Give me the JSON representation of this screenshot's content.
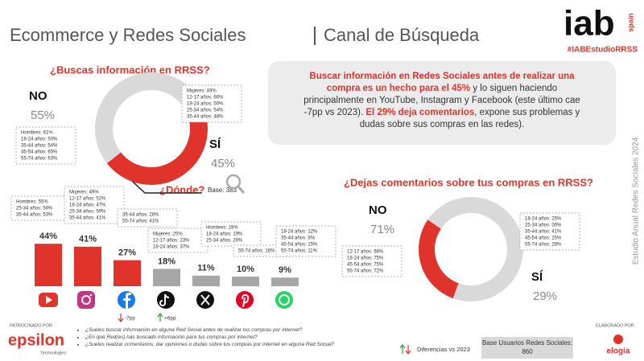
{
  "header": {
    "title": "Ecommerce y Redes Sociales",
    "subtitle": "Canal de Búsqueda",
    "logo": "iab",
    "logo_country": "spain",
    "hashtag": "#IABEstudioRRSS",
    "side_text": "Estudio Anual Redes Sociales 2024"
  },
  "callout": [
    "Buscar información en Redes Sociales antes de realizar una compra es un hecho para el 45%",
    " y lo siguen haciendo principalmente en YouTube, Instagram y Facebook (este último cae -7pp vs 2023). ",
    "El 29% deja comentarios",
    ", expone sus problemas y dudas sobre sus compras en las redes)."
  ],
  "chart_data": [
    {
      "type": "pie",
      "title": "¿Buscas información en RRSS?",
      "categories": [
        "NO",
        "SÍ"
      ],
      "values": [
        55,
        45
      ],
      "value_labels": [
        "55%",
        "45%"
      ],
      "colors": [
        "#d9d9d9",
        "#e0332b"
      ],
      "notes": [
        [
          "Hombres: 61%",
          "18-24 años: 50%",
          "35-44 años: 54%",
          "45-54 años: 65%",
          "55-74 años: 63%"
        ],
        [
          "Mujeres: 49%",
          "12-17 años: 66%",
          "18-24 años: 50%",
          "25-34 años: 54%",
          "35-44 años: 48%"
        ]
      ]
    },
    {
      "type": "bar",
      "title": "¿Dónde?",
      "subtitle": "Base: 383",
      "categories": [
        null,
        null,
        null,
        null,
        null,
        null,
        null
      ],
      "values": [
        44,
        41,
        27,
        18,
        11,
        10,
        9
      ],
      "value_labels": [
        "44%",
        "41%",
        "27%",
        "18%",
        "11%",
        "10%",
        "9%"
      ],
      "colors": [
        "#e0332b",
        "#e0332b",
        "#e0332b",
        "#a6a6a6",
        "#a6a6a6",
        "#a6a6a6",
        "#a6a6a6"
      ],
      "notes": [
        [
          "Hombres: 55%",
          "25-34 años: 58%",
          "35-44 años: 53%"
        ],
        [
          "Mujeres: 49%",
          "12-17 años: 52%",
          "18-24 años: 47%",
          "25-34 años: 59%",
          "35-44 años: 41%"
        ],
        [
          "35-44 años: 28%",
          "55-74 años: 41%"
        ],
        [
          "Mujeres: 25%",
          "12-17 años: 23%",
          "18-24 años: 37%"
        ],
        [
          "Hombres: 18%",
          "18-24 años: 19%",
          "25-34 años: 20%"
        ],
        [
          "55-74 años: 16%"
        ],
        [
          "18-24 años: 12%",
          "35-44 años: 8%",
          "45-54 años: 15%",
          "55-74 años: 11%"
        ]
      ],
      "changes": [
        null,
        null,
        "-7pp",
        "+6pp",
        null,
        null,
        null
      ]
    },
    {
      "type": "pie",
      "title": "¿Dejas comentarios sobre tus compras en RRSS?",
      "categories": [
        "NO",
        "SÍ"
      ],
      "values": [
        71,
        29
      ],
      "value_labels": [
        "71%",
        "29%"
      ],
      "colors": [
        "#d9d9d9",
        "#e0332b"
      ],
      "notes": [
        [
          "12-17 años: 66%",
          "18-24 años: 75%",
          "45-54 años: 75%",
          "55-74 años: 72%"
        ],
        [
          "18-24 años: 25%",
          "25-34 años: 30%",
          "35-44 años: 41%",
          "45-54 años: 25%",
          "55-74 años: 28%"
        ]
      ]
    }
  ],
  "footer": {
    "sponsor_label": "PATROCINADO POR",
    "sponsor": "epsilon",
    "sponsor_sub": "Technologies",
    "questions": [
      "¿Sueles buscar información en alguna Red Social antes de realizar tus compras por internet?",
      "¿En qué Red(es) has buscado información para tus compras por internet?",
      "¿Sueles realizar comentarios, dar opiniones o dudas sobre tus compras por internet en alguna Red Social?"
    ],
    "legend": "Diferencias vs 2023",
    "base": "Base Usuarios Redes Sociales: 860",
    "made_by_label": "ELABORADO POR",
    "made_by": "elogia"
  }
}
